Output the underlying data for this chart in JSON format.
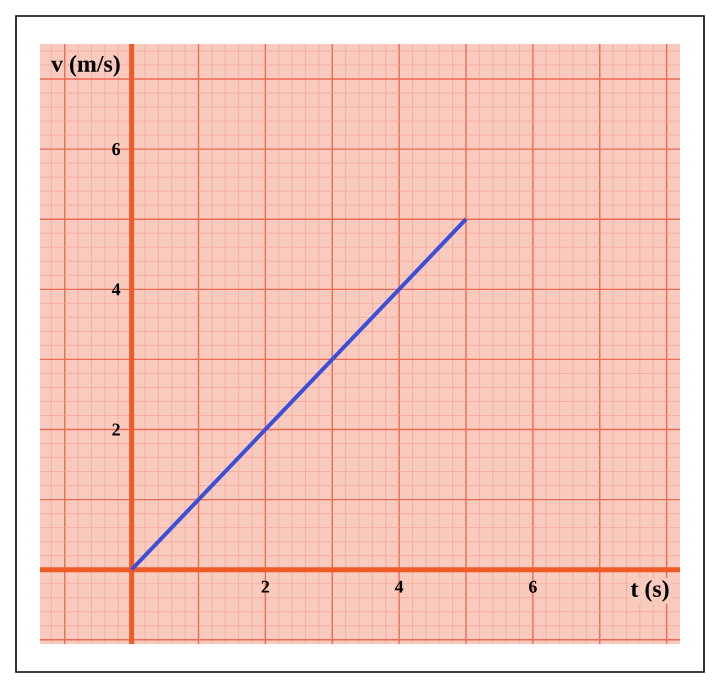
{
  "chart_data": {
    "type": "line",
    "xlabel": "t (s)",
    "ylabel": "v (m/s)",
    "x": [
      0,
      5
    ],
    "series": [
      {
        "color": "#3b4fd8",
        "values": [
          0,
          5
        ]
      }
    ],
    "xlim": [
      -1.37,
      8.2
    ],
    "ylim": [
      -1.06,
      7.5
    ],
    "xticks": [
      {
        "value": -1.2,
        "label": null
      },
      {
        "value": -1,
        "label": null
      },
      {
        "value": -0.8,
        "label": null
      },
      {
        "value": -0.6,
        "label": null
      },
      {
        "value": -0.4,
        "label": null
      },
      {
        "value": -0.2,
        "label": null
      },
      {
        "value": 0,
        "label": null
      },
      {
        "value": 0.2,
        "label": null
      },
      {
        "value": 0.4,
        "label": null
      },
      {
        "value": 0.6,
        "label": null
      },
      {
        "value": 0.8,
        "label": null
      },
      {
        "value": 1,
        "label": null
      },
      {
        "value": 1.2,
        "label": null
      },
      {
        "value": 1.4,
        "label": null
      },
      {
        "value": 1.6,
        "label": null
      },
      {
        "value": 1.8,
        "label": null
      },
      2,
      {
        "value": 2.2,
        "label": null
      },
      {
        "value": 2.4,
        "label": null
      },
      {
        "value": 2.6,
        "label": null
      },
      {
        "value": 2.8,
        "label": null
      },
      {
        "value": 3,
        "label": null
      },
      {
        "value": 3.2,
        "label": null
      },
      {
        "value": 3.4,
        "label": null
      },
      {
        "value": 3.6,
        "label": null
      },
      {
        "value": 3.8,
        "label": null
      },
      4,
      {
        "value": 4.2,
        "label": null
      },
      {
        "value": 4.4,
        "label": null
      },
      {
        "value": 4.6,
        "label": null
      },
      {
        "value": 4.8,
        "label": null
      },
      {
        "value": 5,
        "label": null
      },
      {
        "value": 5.2,
        "label": null
      },
      {
        "value": 5.4,
        "label": null
      },
      {
        "value": 5.6,
        "label": null
      },
      {
        "value": 5.8,
        "label": null
      },
      6,
      {
        "value": 6.2,
        "label": null
      },
      {
        "value": 6.4,
        "label": null
      },
      {
        "value": 6.6,
        "label": null
      },
      {
        "value": 6.8,
        "label": null
      },
      {
        "value": 7,
        "label": null
      },
      {
        "value": 7.2,
        "label": null
      },
      {
        "value": 7.4,
        "label": null
      },
      {
        "value": 7.6,
        "label": null
      },
      {
        "value": 7.8,
        "label": null
      },
      {
        "value": 8,
        "label": null
      }
    ],
    "yticks": [
      {
        "value": -1,
        "label": null
      },
      {
        "value": -0.8,
        "label": null
      },
      {
        "value": -0.6,
        "label": null
      },
      {
        "value": -0.4,
        "label": null
      },
      {
        "value": -0.2,
        "label": null
      },
      {
        "value": 0,
        "label": null
      },
      {
        "value": 0.2,
        "label": null
      },
      {
        "value": 0.4,
        "label": null
      },
      {
        "value": 0.6,
        "label": null
      },
      {
        "value": 0.8,
        "label": null
      },
      {
        "value": 1,
        "label": null
      },
      {
        "value": 1.2,
        "label": null
      },
      {
        "value": 1.4,
        "label": null
      },
      {
        "value": 1.6,
        "label": null
      },
      {
        "value": 1.8,
        "label": null
      },
      2,
      {
        "value": 2.2,
        "label": null
      },
      {
        "value": 2.4,
        "label": null
      },
      {
        "value": 2.6,
        "label": null
      },
      {
        "value": 2.8,
        "label": null
      },
      {
        "value": 3,
        "label": null
      },
      {
        "value": 3.2,
        "label": null
      },
      {
        "value": 3.4,
        "label": null
      },
      {
        "value": 3.6,
        "label": null
      },
      {
        "value": 3.8,
        "label": null
      },
      4,
      {
        "value": 4.2,
        "label": null
      },
      {
        "value": 4.4,
        "label": null
      },
      {
        "value": 4.6,
        "label": null
      },
      {
        "value": 4.8,
        "label": null
      },
      {
        "value": 5,
        "label": null
      },
      {
        "value": 5.2,
        "label": null
      },
      {
        "value": 5.4,
        "label": null
      },
      {
        "value": 5.6,
        "label": null
      },
      {
        "value": 5.8,
        "label": null
      },
      6,
      {
        "value": 6.2,
        "label": null
      },
      {
        "value": 6.4,
        "label": null
      },
      {
        "value": 6.6,
        "label": null
      },
      {
        "value": 6.8,
        "label": null
      },
      {
        "value": 7,
        "label": null
      },
      {
        "value": 7.2,
        "label": null
      },
      {
        "value": 7.4,
        "label": null
      }
    ],
    "grid": true,
    "marker": "none",
    "line_style": "solid"
  }
}
